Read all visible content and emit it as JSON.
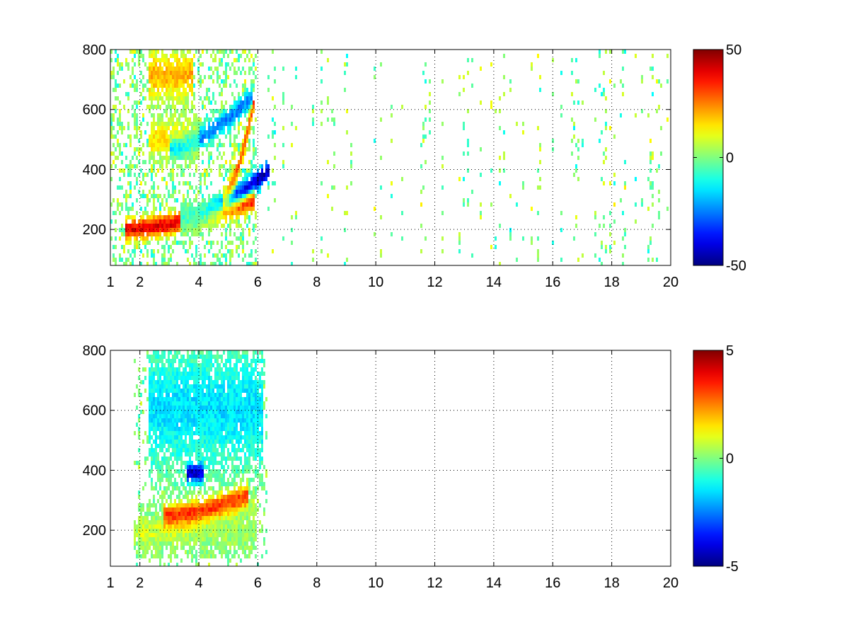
{
  "chart_data": [
    {
      "type": "heatmap",
      "title": "",
      "xlabel": "",
      "ylabel": "",
      "xlim": [
        1,
        20
      ],
      "ylim": [
        80,
        800
      ],
      "xticks": [
        1,
        2,
        4,
        6,
        8,
        10,
        12,
        14,
        16,
        18,
        20
      ],
      "yticks": [
        200,
        400,
        600,
        800
      ],
      "grid": true,
      "colormap": "jet",
      "colorbar": {
        "clim": [
          -50,
          50
        ],
        "ticks": [
          -50,
          0,
          50
        ],
        "placement": "right"
      },
      "features": [
        {
          "kind": "band",
          "x_range": [
            1.5,
            5.9
          ],
          "y_start": 200,
          "y_end": 300,
          "value": 40
        },
        {
          "kind": "band",
          "x_range": [
            3.4,
            6.4
          ],
          "y_start": 230,
          "y_end": 400,
          "value": -45
        },
        {
          "kind": "band",
          "x_range": [
            3.0,
            5.8
          ],
          "y_start": 470,
          "y_end": 640,
          "value": -25
        },
        {
          "kind": "band",
          "x_range": [
            4.8,
            5.9
          ],
          "y_start": 300,
          "y_end": 640,
          "value": 30
        },
        {
          "kind": "blob",
          "x_range": [
            2.3,
            3.8
          ],
          "y_range": [
            640,
            790
          ],
          "value": 20
        },
        {
          "kind": "blob",
          "x_range": [
            2.3,
            4.0
          ],
          "y_range": [
            440,
            560
          ],
          "value": 15
        }
      ]
    },
    {
      "type": "heatmap",
      "title": "",
      "xlabel": "",
      "ylabel": "",
      "xlim": [
        1,
        20
      ],
      "ylim": [
        80,
        800
      ],
      "xticks": [
        1,
        2,
        4,
        6,
        8,
        10,
        12,
        14,
        16,
        18,
        20
      ],
      "yticks": [
        200,
        400,
        600,
        800
      ],
      "grid": true,
      "colormap": "jet",
      "colorbar": {
        "clim": [
          -5,
          5
        ],
        "ticks": [
          -5,
          0,
          5
        ],
        "placement": "right"
      },
      "features": [
        {
          "kind": "band",
          "x_range": [
            1.8,
            5.9
          ],
          "y_start": 190,
          "y_end": 300,
          "value": 0.5
        },
        {
          "kind": "band",
          "x_range": [
            2.8,
            5.7
          ],
          "y_start": 250,
          "y_end": 320,
          "value": 3
        },
        {
          "kind": "blob",
          "x_range": [
            1.9,
            6.0
          ],
          "y_range": [
            130,
            260
          ],
          "value": 0.3
        },
        {
          "kind": "blob",
          "x_range": [
            2.3,
            6.2
          ],
          "y_range": [
            420,
            790
          ],
          "value": -1.5
        },
        {
          "kind": "blob",
          "x_range": [
            3.6,
            4.2
          ],
          "y_range": [
            360,
            420
          ],
          "value": -4
        }
      ]
    }
  ]
}
